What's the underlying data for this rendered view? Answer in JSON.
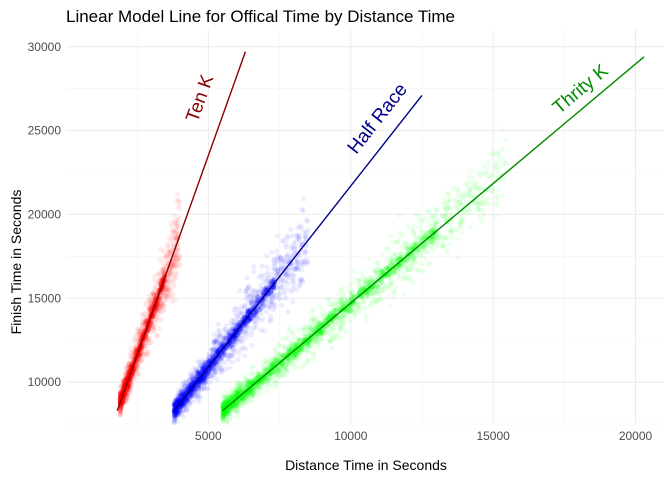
{
  "chart_data": {
    "type": "scatter",
    "title": "Linear Model Line for Offical Time by Distance Time",
    "xlabel": "Distance Time in Seconds",
    "ylabel": "Finish Time in Seconds",
    "xlim": [
      0,
      21000
    ],
    "ylim": [
      7500,
      31000
    ],
    "x_ticks": [
      5000,
      10000,
      15000,
      20000
    ],
    "x_tick_labels": [
      "5000",
      "10000",
      "15000",
      "20000"
    ],
    "y_ticks": [
      10000,
      15000,
      20000,
      25000,
      30000
    ],
    "y_tick_labels": [
      "10000",
      "15000",
      "20000",
      "25000",
      "30000"
    ],
    "grid": true,
    "legend": "none",
    "series": [
      {
        "name": "Ten K",
        "color": "#ff0000",
        "line_color": "#8b0000",
        "point_range_x": [
          1900,
          4000
        ],
        "fit_line": {
          "x": [
            1800,
            6300
          ],
          "y": [
            8300,
            29700
          ]
        }
      },
      {
        "name": "Half Race",
        "color": "#0000ff",
        "line_color": "#00008b",
        "point_range_x": [
          3800,
          8500
        ],
        "fit_line": {
          "x": [
            3800,
            12500
          ],
          "y": [
            8300,
            27100
          ]
        }
      },
      {
        "name": "Thrity K",
        "color": "#00ff00",
        "line_color": "#008b00",
        "point_range_x": [
          5500,
          15500
        ],
        "fit_line": {
          "x": [
            5500,
            20300
          ],
          "y": [
            8300,
            29400
          ]
        }
      }
    ],
    "annotations": [
      {
        "text": "Ten K",
        "x": 4900,
        "y": 26800,
        "color": "#8b0000"
      },
      {
        "text": "Half Race",
        "x": 11100,
        "y": 25500,
        "color": "#00008b"
      },
      {
        "text": "Thrity K",
        "x": 18200,
        "y": 27200,
        "color": "#008b00"
      }
    ]
  }
}
